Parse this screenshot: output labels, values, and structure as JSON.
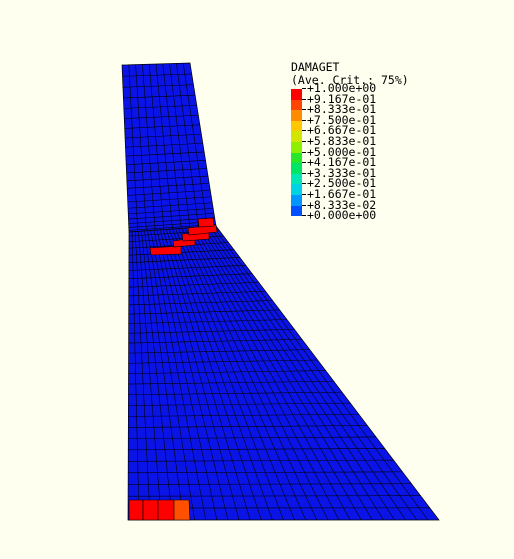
{
  "legend": {
    "title": "DAMAGET",
    "subtitle": "(Ave. Crit.: 75%)",
    "levels": [
      {
        "label": "+1.000e+00",
        "color": "#ff0000"
      },
      {
        "label": "+9.167e-01",
        "color": "#ff4500"
      },
      {
        "label": "+8.333e-01",
        "color": "#ff8c00"
      },
      {
        "label": "+7.500e-01",
        "color": "#ffc800"
      },
      {
        "label": "+6.667e-01",
        "color": "#d2e600"
      },
      {
        "label": "+5.833e-01",
        "color": "#8cf000"
      },
      {
        "label": "+5.000e-01",
        "color": "#28e628"
      },
      {
        "label": "+4.167e-01",
        "color": "#00e664"
      },
      {
        "label": "+3.333e-01",
        "color": "#00e6b4"
      },
      {
        "label": "+2.500e-01",
        "color": "#00d2e6"
      },
      {
        "label": "+1.667e-01",
        "color": "#0096ff"
      },
      {
        "label": "+8.333e-02",
        "color": "#0050ff"
      },
      {
        "label": "+0.000e+00",
        "color": null
      }
    ]
  },
  "mesh": {
    "base_color": "#0a14e6",
    "line_color": "#000000",
    "damaged_color": "#ff0000",
    "partial_damage_color": "#ff5000"
  }
}
